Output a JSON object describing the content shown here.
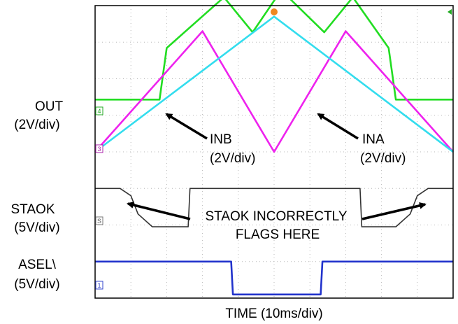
{
  "chart_data": {
    "type": "line",
    "xlabel": "TIME (10ms/div)",
    "time_per_div": "10ms/div",
    "divisions": {
      "x": 10,
      "y": 8
    },
    "grid": true,
    "channels": [
      {
        "id": "4",
        "name": "OUT",
        "scale": "(2V/div)",
        "color": "#22dd22"
      },
      {
        "id": "3",
        "name": "INB",
        "scale": "(2V/div)",
        "color": "#ee22ee"
      },
      {
        "id": "3",
        "name": "INA",
        "scale": "(2V/div)",
        "color": "#33ddee"
      },
      {
        "id": "S",
        "name": "STAOK",
        "scale": "(5V/div)",
        "color": "#333333"
      },
      {
        "id": "1",
        "name": "ASEL\\",
        "scale": "(5V/div)",
        "color": "#2233cc"
      }
    ],
    "annotations": {
      "inb": "INB",
      "inb_scale": "(2V/div)",
      "ina": "INA",
      "ina_scale": "(2V/div)",
      "flag_line1": "STAOK INCORRECTLY",
      "flag_line2": "FLAGS HERE"
    },
    "series": [
      {
        "name": "OUT",
        "x": [
          0,
          1.8,
          2.0,
          3.6,
          4.4,
          5.2,
          6.4,
          7.2,
          8.2,
          8.4,
          10
        ],
        "y": [
          5.43,
          5.43,
          6.84,
          8.23,
          7.27,
          8.42,
          7.27,
          8.23,
          6.84,
          5.43,
          5.43
        ]
      },
      {
        "name": "INB",
        "x": [
          0,
          3.0,
          5.0,
          7.0,
          10
        ],
        "y": [
          4.0,
          7.3,
          4.0,
          7.3,
          4.0
        ]
      },
      {
        "name": "INA",
        "x": [
          0,
          5.0,
          10
        ],
        "y": [
          4.0,
          7.7,
          4.0
        ]
      },
      {
        "name": "STAOK",
        "x": [
          0,
          0.7,
          1.0,
          1.2,
          1.6,
          2.6,
          2.65,
          7.4,
          7.45,
          8.4,
          8.8,
          9.0,
          9.3,
          10
        ],
        "y": [
          3.0,
          3.0,
          2.8,
          2.3,
          1.95,
          1.95,
          3.0,
          3.0,
          1.95,
          1.95,
          2.3,
          2.8,
          3.0,
          3.0
        ]
      },
      {
        "name": "ASEL\\",
        "x": [
          0,
          3.8,
          3.85,
          6.3,
          6.35,
          10
        ],
        "y": [
          1.0,
          1.0,
          0.1,
          0.1,
          1.0,
          1.0
        ]
      }
    ]
  }
}
